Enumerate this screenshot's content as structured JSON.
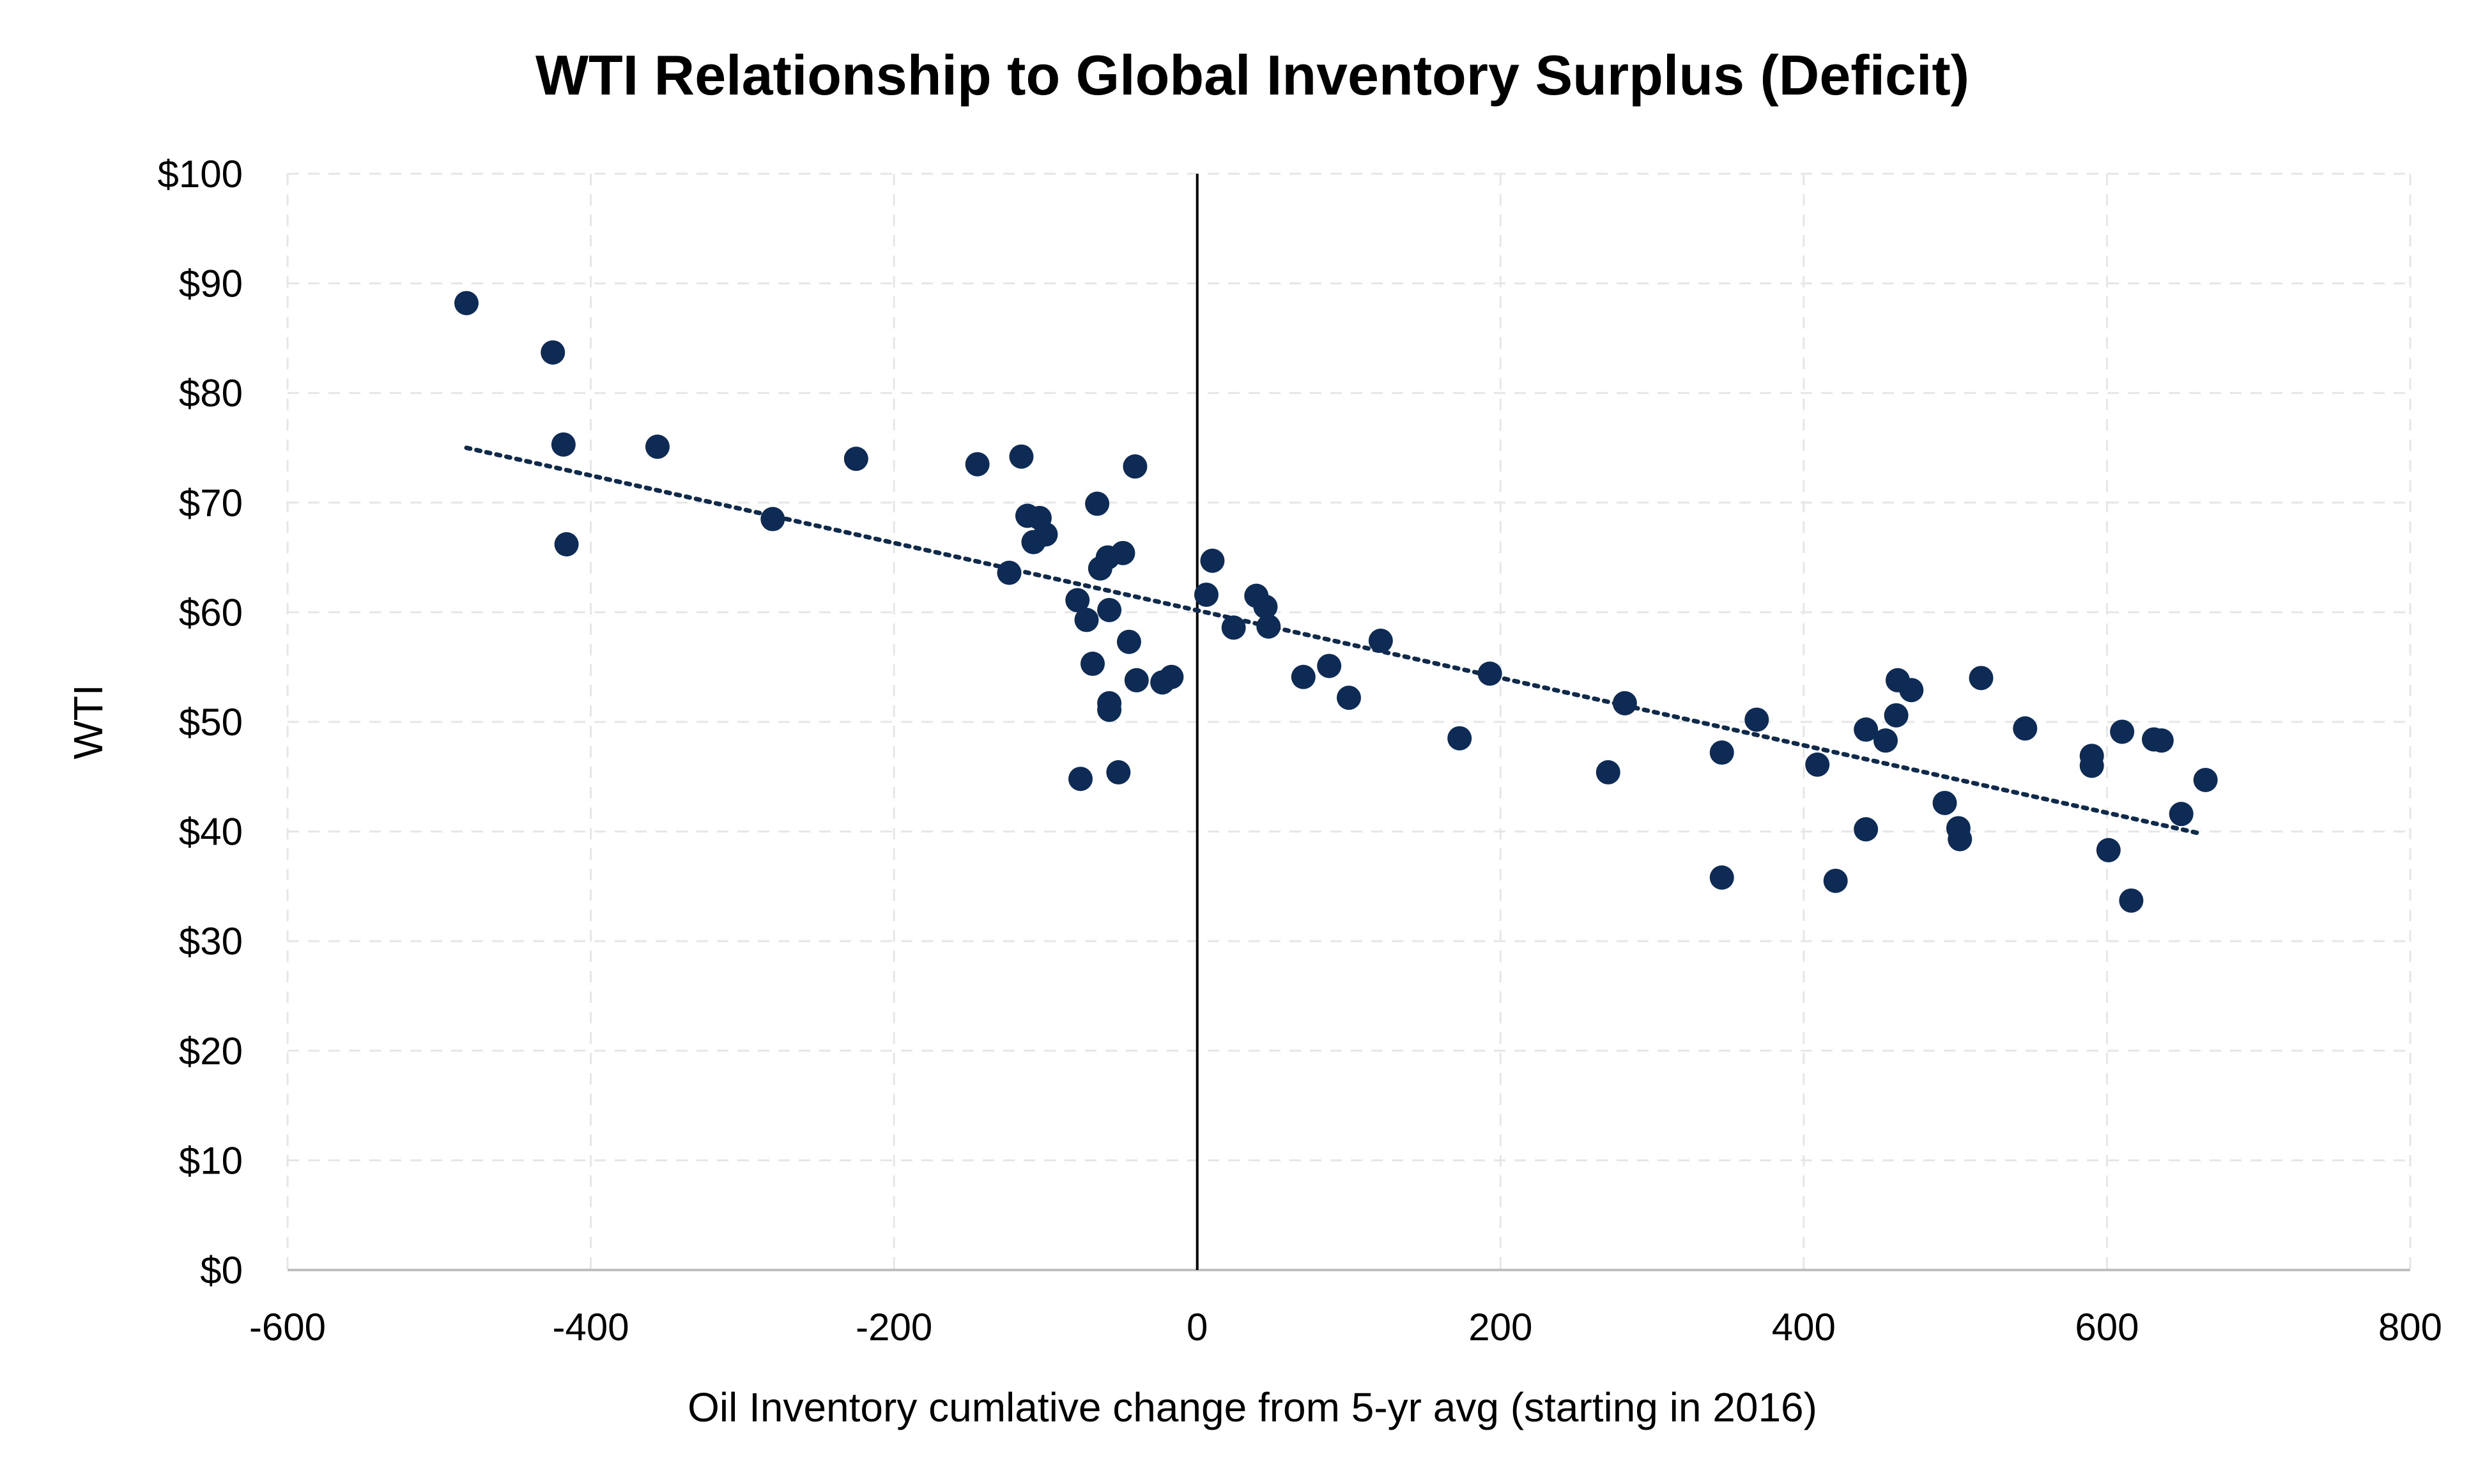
{
  "chart_data": {
    "type": "scatter",
    "title": "WTI Relationship to Global Inventory Surplus (Deficit)",
    "xlabel": "Oil Inventory cumlative change from 5-yr avg (starting in 2016)",
    "ylabel": "WTI",
    "xlim": [
      -600,
      800
    ],
    "ylim": [
      0,
      100
    ],
    "x_ticks": [
      -600,
      -400,
      -200,
      0,
      200,
      400,
      600,
      800
    ],
    "x_tick_labels": [
      "-600",
      "-400",
      "-200",
      "0",
      "200",
      "400",
      "600",
      "800"
    ],
    "y_ticks": [
      0,
      10,
      20,
      30,
      40,
      50,
      60,
      70,
      80,
      90,
      100
    ],
    "y_tick_labels": [
      "$0",
      "$10",
      "$20",
      "$30",
      "$40",
      "$50",
      "$60",
      "$70",
      "$80",
      "$90",
      "$100"
    ],
    "grid": true,
    "marker_color": "#0d2b55",
    "trendline": {
      "style": "dotted",
      "color": "#0f2a4a",
      "x": [
        -482,
        662
      ],
      "y": [
        75.0,
        39.8
      ]
    },
    "points": [
      {
        "x": -482,
        "y": 88.2
      },
      {
        "x": -425,
        "y": 83.7
      },
      {
        "x": -418,
        "y": 75.3
      },
      {
        "x": -416,
        "y": 66.2
      },
      {
        "x": -356,
        "y": 75.1
      },
      {
        "x": -280,
        "y": 68.5
      },
      {
        "x": -225,
        "y": 74.0
      },
      {
        "x": -145,
        "y": 73.5
      },
      {
        "x": -116,
        "y": 74.2
      },
      {
        "x": -112,
        "y": 68.8
      },
      {
        "x": -108,
        "y": 66.4
      },
      {
        "x": -104,
        "y": 68.6
      },
      {
        "x": -100,
        "y": 67.1
      },
      {
        "x": -124,
        "y": 63.6
      },
      {
        "x": -79,
        "y": 61.1
      },
      {
        "x": -73,
        "y": 59.3
      },
      {
        "x": -66,
        "y": 69.9
      },
      {
        "x": -64,
        "y": 64.0
      },
      {
        "x": -59,
        "y": 65.0
      },
      {
        "x": -49,
        "y": 65.4
      },
      {
        "x": -58,
        "y": 60.2
      },
      {
        "x": -69,
        "y": 55.3
      },
      {
        "x": -45,
        "y": 57.3
      },
      {
        "x": -41,
        "y": 73.3
      },
      {
        "x": -40,
        "y": 53.8
      },
      {
        "x": -58,
        "y": 51.7
      },
      {
        "x": -58,
        "y": 51.1
      },
      {
        "x": -77,
        "y": 44.8
      },
      {
        "x": -52,
        "y": 45.4
      },
      {
        "x": -23,
        "y": 53.6
      },
      {
        "x": -17,
        "y": 54.1
      },
      {
        "x": 6,
        "y": 61.6
      },
      {
        "x": 10,
        "y": 64.7
      },
      {
        "x": 24,
        "y": 58.6
      },
      {
        "x": 39,
        "y": 61.5
      },
      {
        "x": 45,
        "y": 60.5
      },
      {
        "x": 47,
        "y": 58.7
      },
      {
        "x": 70,
        "y": 54.1
      },
      {
        "x": 87,
        "y": 55.1
      },
      {
        "x": 100,
        "y": 52.2
      },
      {
        "x": 121,
        "y": 57.4
      },
      {
        "x": 173,
        "y": 48.5
      },
      {
        "x": 193,
        "y": 54.4
      },
      {
        "x": 271,
        "y": 45.4
      },
      {
        "x": 282,
        "y": 51.7
      },
      {
        "x": 346,
        "y": 47.2
      },
      {
        "x": 346,
        "y": 35.8
      },
      {
        "x": 369,
        "y": 50.2
      },
      {
        "x": 409,
        "y": 46.1
      },
      {
        "x": 421,
        "y": 35.5
      },
      {
        "x": 441,
        "y": 49.3
      },
      {
        "x": 441,
        "y": 40.2
      },
      {
        "x": 454,
        "y": 48.3
      },
      {
        "x": 462,
        "y": 53.8
      },
      {
        "x": 461,
        "y": 50.6
      },
      {
        "x": 471,
        "y": 52.9
      },
      {
        "x": 493,
        "y": 42.6
      },
      {
        "x": 502,
        "y": 40.3
      },
      {
        "x": 503,
        "y": 39.3
      },
      {
        "x": 517,
        "y": 54.0
      },
      {
        "x": 546,
        "y": 49.4
      },
      {
        "x": 590,
        "y": 46.9
      },
      {
        "x": 590,
        "y": 46.0
      },
      {
        "x": 601,
        "y": 38.3
      },
      {
        "x": 610,
        "y": 49.1
      },
      {
        "x": 616,
        "y": 33.7
      },
      {
        "x": 631,
        "y": 48.4
      },
      {
        "x": 636,
        "y": 48.3
      },
      {
        "x": 649,
        "y": 41.6
      },
      {
        "x": 665,
        "y": 44.7
      }
    ]
  }
}
